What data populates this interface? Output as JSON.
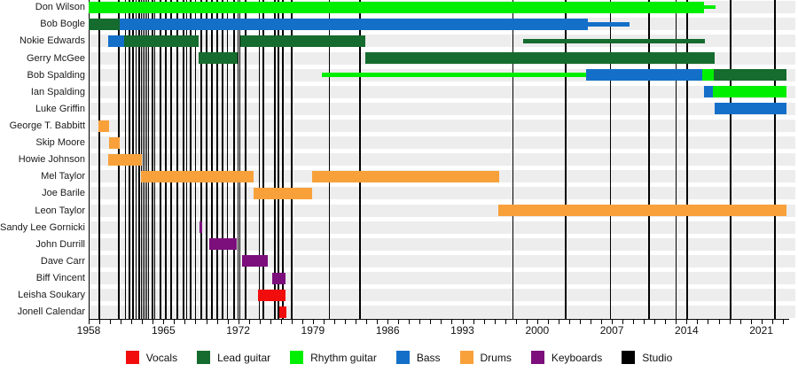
{
  "chart_data": {
    "type": "timeline",
    "description": "Band members timeline gantt chart",
    "x_axis": {
      "start_year": 1958,
      "end_year": 2023.5,
      "tick_step_years": 1,
      "label_years": [
        1958,
        1965,
        1972,
        1979,
        1986,
        1993,
        2000,
        2007,
        2014,
        2021
      ]
    },
    "role_colors": {
      "Vocals": "#f20d0d",
      "Lead guitar": "#166b2e",
      "Rhythm guitar": "#00ef00",
      "Bass": "#146fc9",
      "Drums": "#f8a13a",
      "Keyboards": "#7c0f7c",
      "Studio": "#000000"
    },
    "members": [
      {
        "name": "Don Wilson",
        "segments": [
          {
            "role": "Rhythm guitar",
            "from": 1958.0,
            "to": 2015.63
          },
          {
            "role": "Rhythm guitar",
            "from": 2015.63,
            "to": 2016.71,
            "thin": true
          }
        ]
      },
      {
        "name": "Bob Bogle",
        "segments": [
          {
            "role": "Lead guitar",
            "from": 1958.0,
            "to": 1960.91
          },
          {
            "role": "Bass",
            "from": 1960.91,
            "to": 2004.75
          },
          {
            "role": "Bass",
            "from": 2004.75,
            "to": 2008.65,
            "thin": true
          }
        ]
      },
      {
        "name": "Nokie Edwards",
        "segments": [
          {
            "role": "Bass",
            "from": 1959.83,
            "to": 1961.32
          },
          {
            "role": "Lead guitar",
            "from": 1961.32,
            "to": 1968.3
          },
          {
            "role": "Lead guitar",
            "from": 1972.2,
            "to": 1983.91
          },
          {
            "role": "Lead guitar",
            "from": 1998.69,
            "to": 2015.71,
            "thin": true
          }
        ]
      },
      {
        "name": "Gerry McGee",
        "segments": [
          {
            "role": "Lead guitar",
            "from": 1968.3,
            "to": 1971.99
          },
          {
            "role": "Lead guitar",
            "from": 1983.91,
            "to": 2016.63
          }
        ]
      },
      {
        "name": "Bob Spalding",
        "segments": [
          {
            "role": "Rhythm guitar",
            "from": 1979.84,
            "to": 2004.58,
            "thin": true
          },
          {
            "role": "Bass",
            "from": 2004.58,
            "to": 2015.46
          },
          {
            "role": "Rhythm guitar",
            "from": 2015.46,
            "to": 2016.54
          },
          {
            "role": "Lead guitar",
            "from": 2016.54,
            "to": 2023.35
          }
        ]
      },
      {
        "name": "Ian Spalding",
        "segments": [
          {
            "role": "Bass",
            "from": 2015.63,
            "to": 2016.46
          },
          {
            "role": "Rhythm guitar",
            "from": 2016.46,
            "to": 2023.35
          }
        ]
      },
      {
        "name": "Luke Griffin",
        "segments": [
          {
            "role": "Bass",
            "from": 2016.63,
            "to": 2023.35
          }
        ]
      },
      {
        "name": "George T. Babbitt",
        "segments": [
          {
            "role": "Drums",
            "from": 1958.91,
            "to": 1959.91
          }
        ]
      },
      {
        "name": "Skip Moore",
        "segments": [
          {
            "role": "Drums",
            "from": 1959.91,
            "to": 1960.91
          }
        ]
      },
      {
        "name": "Howie Johnson",
        "segments": [
          {
            "role": "Drums",
            "from": 1959.83,
            "to": 1962.98
          }
        ]
      },
      {
        "name": "Mel Taylor",
        "segments": [
          {
            "role": "Drums",
            "from": 1962.9,
            "to": 1973.41
          },
          {
            "role": "Drums",
            "from": 1978.93,
            "to": 1996.45
          }
        ]
      },
      {
        "name": "Joe Barile",
        "segments": [
          {
            "role": "Drums",
            "from": 1973.41,
            "to": 1978.93
          }
        ]
      },
      {
        "name": "Leon Taylor",
        "segments": [
          {
            "role": "Drums",
            "from": 1996.37,
            "to": 2023.35
          }
        ]
      },
      {
        "name": "Sandy Lee Gornicki",
        "segments": [
          {
            "role": "Keyboards",
            "from": 1968.38,
            "to": 1968.63
          }
        ]
      },
      {
        "name": "John Durrill",
        "segments": [
          {
            "role": "Keyboards",
            "from": 1969.27,
            "to": 1971.91
          }
        ]
      },
      {
        "name": "Dave Carr",
        "segments": [
          {
            "role": "Keyboards",
            "from": 1972.34,
            "to": 1974.8
          }
        ]
      },
      {
        "name": "Biff Vincent",
        "segments": [
          {
            "role": "Keyboards",
            "from": 1975.16,
            "to": 1976.46
          }
        ]
      },
      {
        "name": "Leisha Soukary",
        "segments": [
          {
            "role": "Vocals",
            "from": 1973.86,
            "to": 1976.44
          }
        ]
      },
      {
        "name": "Jonell Calendar",
        "segments": [
          {
            "role": "Vocals",
            "from": 1975.86,
            "to": 1976.52
          }
        ]
      }
    ],
    "studio_album_years": [
      1958.91,
      1960.77,
      1961.4,
      1961.74,
      1962.07,
      1962.36,
      1962.65,
      1962.86,
      1963.02,
      1963.19,
      1963.36,
      1963.52,
      1963.9,
      1964.14,
      1964.64,
      1965.14,
      1965.64,
      1966.22,
      1966.8,
      1967.13,
      1967.47,
      1967.96,
      1968.46,
      1968.96,
      1969.46,
      1969.96,
      1970.46,
      1970.95,
      1971.54,
      1971.91,
      1972.08,
      1972.62,
      1973.94,
      1974.28,
      1975.36,
      1975.69,
      1976.1,
      1976.93,
      1980.5,
      1983.33,
      1997.69,
      2002.59,
      2006.82,
      2010.4,
      2012.97,
      2013.97,
      2018.04,
      2022.19
    ],
    "legend": [
      {
        "label": "Vocals",
        "color": "#f20d0d"
      },
      {
        "label": "Lead guitar",
        "color": "#166b2e"
      },
      {
        "label": "Rhythm guitar",
        "color": "#00ef00"
      },
      {
        "label": "Bass",
        "color": "#146fc9"
      },
      {
        "label": "Drums",
        "color": "#f8a13a"
      },
      {
        "label": "Keyboards",
        "color": "#7c0f7c"
      },
      {
        "label": "Studio",
        "color": "#000000"
      }
    ]
  }
}
